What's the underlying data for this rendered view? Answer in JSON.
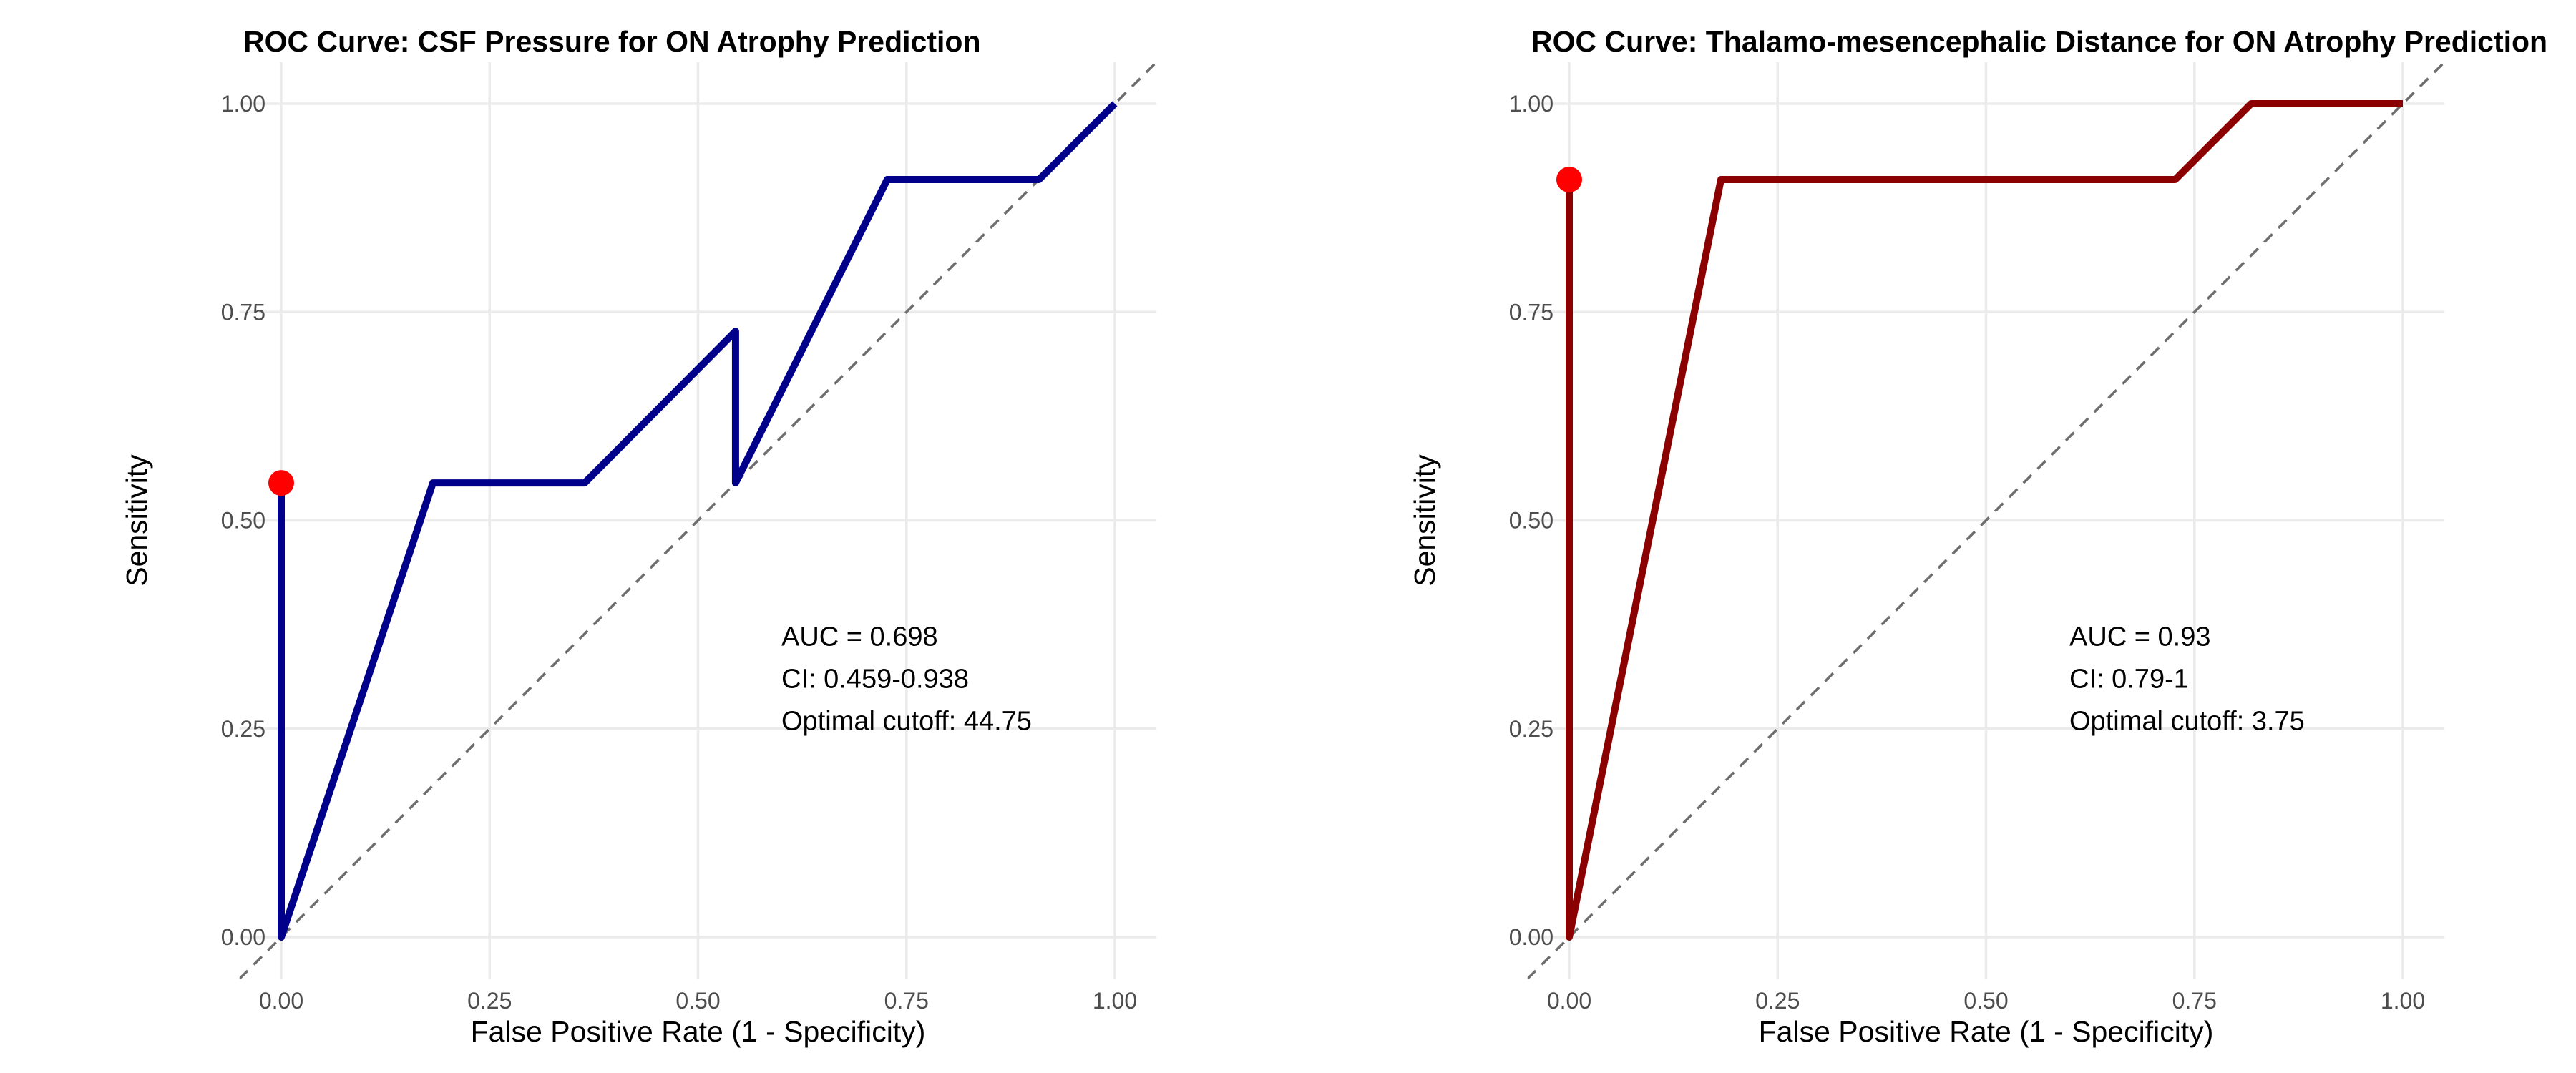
{
  "chart_data": [
    {
      "type": "line",
      "title": "ROC Curve: CSF Pressure for ON Atrophy Prediction",
      "xlabel": "False Positive Rate (1 - Specificity)",
      "ylabel": "Sensitivity",
      "xlim": [
        -0.05,
        1.05
      ],
      "ylim": [
        -0.05,
        1.05
      ],
      "x_ticks": [
        "0.00",
        "0.25",
        "0.50",
        "0.75",
        "1.00"
      ],
      "y_ticks": [
        "0.00",
        "0.25",
        "0.50",
        "0.75",
        "1.00"
      ],
      "grid": true,
      "series": [
        {
          "color": "#00008b",
          "x": [
            0.0,
            0.0,
            0.182,
            0.364,
            0.545,
            0.545,
            0.727,
            0.909,
            1.0
          ],
          "y": [
            0.545,
            0.0,
            0.545,
            0.545,
            0.727,
            0.545,
            0.909,
            0.909,
            1.0
          ]
        }
      ],
      "reference_line": {
        "x": [
          -0.05,
          1.05
        ],
        "y": [
          -0.05,
          1.05
        ],
        "style": "dashed",
        "color": "#6e6e6e"
      },
      "optimal_point": {
        "x": 0.0,
        "y": 0.545,
        "color": "#ff0000"
      },
      "annotations": [
        "AUC = 0.698",
        "CI: 0.459-0.938",
        "Optimal cutoff: 44.75"
      ],
      "annotation_anchor": {
        "x": 0.6,
        "y": 0.35
      }
    },
    {
      "type": "line",
      "title": "ROC Curve: Thalamo-mesencephalic Distance for ON Atrophy Prediction",
      "xlabel": "False Positive Rate (1 - Specificity)",
      "ylabel": "Sensitivity",
      "xlim": [
        -0.05,
        1.05
      ],
      "ylim": [
        -0.05,
        1.05
      ],
      "x_ticks": [
        "0.00",
        "0.25",
        "0.50",
        "0.75",
        "1.00"
      ],
      "y_ticks": [
        "0.00",
        "0.25",
        "0.50",
        "0.75",
        "1.00"
      ],
      "grid": true,
      "series": [
        {
          "color": "#8b0000",
          "x": [
            0.0,
            0.0,
            0.182,
            0.727,
            0.818,
            1.0
          ],
          "y": [
            0.909,
            0.0,
            0.909,
            0.909,
            1.0,
            1.0
          ]
        }
      ],
      "reference_line": {
        "x": [
          -0.05,
          1.05
        ],
        "y": [
          -0.05,
          1.05
        ],
        "style": "dashed",
        "color": "#6e6e6e"
      },
      "optimal_point": {
        "x": 0.0,
        "y": 0.909,
        "color": "#ff0000"
      },
      "annotations": [
        "AUC = 0.93",
        "CI: 0.79-1",
        "Optimal cutoff: 3.75"
      ],
      "annotation_anchor": {
        "x": 0.6,
        "y": 0.35
      }
    }
  ]
}
